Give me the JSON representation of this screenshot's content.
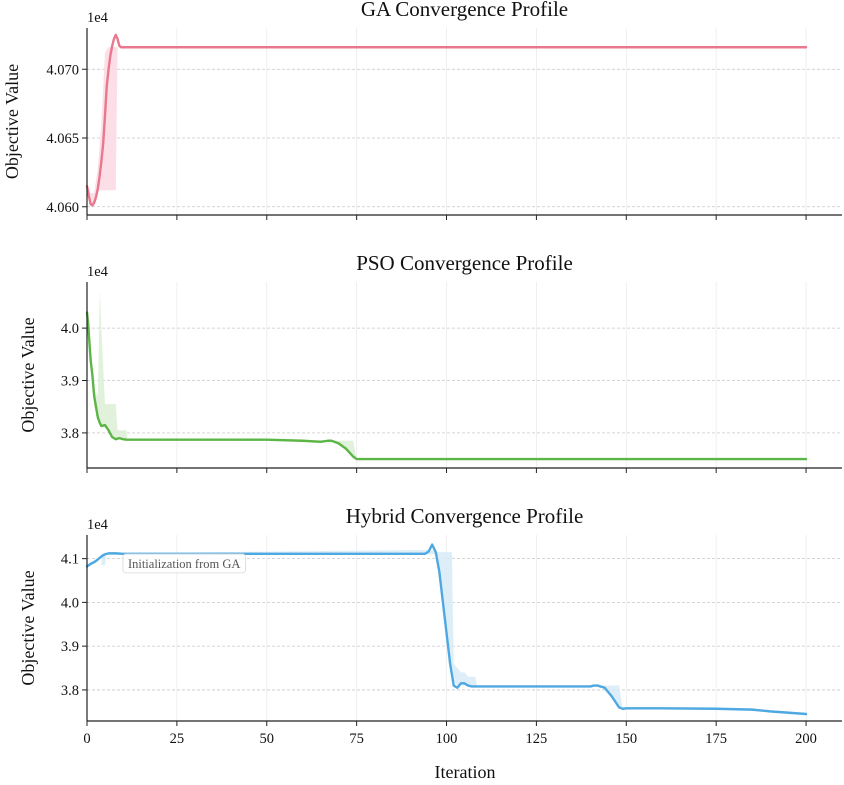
{
  "figure": {
    "xlabel": "Iteration",
    "xticks": [
      0,
      25,
      50,
      75,
      100,
      125,
      150,
      175,
      200
    ],
    "xlim": [
      0,
      210
    ]
  },
  "chart_data": [
    {
      "type": "line",
      "title": "GA Convergence Profile",
      "ylabel": "Objective Value",
      "offset_label": "1e4",
      "scale": 10000,
      "ylim": [
        40594,
        40730
      ],
      "yticks": [
        40600,
        40650,
        40700
      ],
      "ytick_labels": [
        "4.060",
        "4.065",
        "4.070"
      ],
      "color": "#e8788d",
      "band_color": "#fcd8e2",
      "series": [
        {
          "x": [
            0,
            0.5,
            1,
            1.5,
            2,
            2.5,
            3,
            3.5,
            4,
            4.5,
            5,
            5.5,
            6,
            6.5,
            7,
            7.5,
            8,
            8.5,
            9,
            9.5,
            10,
            20,
            50,
            100,
            150,
            200
          ],
          "values": [
            40615,
            40608,
            40602,
            40601,
            40603,
            40607,
            40613,
            40622,
            40633,
            40646,
            40666,
            40688,
            40700,
            40710,
            40717,
            40722,
            40725,
            40722,
            40717,
            40716,
            40716,
            40716,
            40716,
            40716,
            40716,
            40716
          ]
        }
      ],
      "band": {
        "x": [
          0,
          1,
          2,
          3,
          4,
          5,
          6,
          7,
          8,
          8.5
        ],
        "low": [
          40609,
          40602,
          40601,
          40612,
          40612,
          40612,
          40612,
          40612,
          40612,
          40716
        ],
        "high": [
          40617,
          40610,
          40610,
          40628,
          40660,
          40712,
          40716,
          40716,
          40716,
          40716
        ]
      }
    },
    {
      "type": "line",
      "title": "PSO Convergence Profile",
      "ylabel": "Objective Value",
      "offset_label": "1e4",
      "scale": 10000,
      "ylim": [
        37130,
        40680
      ],
      "yticks": [
        37800,
        38800,
        39800
      ],
      "ytick_labels": [
        "3.8",
        "3.9",
        "4.0"
      ],
      "color": "#5cb547",
      "band_color": "#dcefd6",
      "series": [
        {
          "x": [
            0,
            0.3,
            0.7,
            1,
            1.5,
            2,
            2.5,
            3,
            3.5,
            4,
            5,
            6,
            7,
            8,
            9,
            10,
            11,
            12,
            20,
            40,
            50,
            60,
            65,
            67,
            68,
            70,
            72,
            74,
            75,
            76,
            80,
            100,
            150,
            200
          ],
          "values": [
            40100,
            39900,
            39500,
            39200,
            38900,
            38500,
            38300,
            38100,
            38000,
            37930,
            37950,
            37850,
            37720,
            37680,
            37700,
            37680,
            37670,
            37670,
            37670,
            37670,
            37670,
            37650,
            37630,
            37650,
            37650,
            37600,
            37500,
            37350,
            37300,
            37300,
            37300,
            37300,
            37300,
            37300
          ]
        }
      ],
      "band": {
        "x": [
          2,
          3,
          3.6,
          4,
          5,
          8,
          8.5,
          11,
          11.2,
          68,
          70,
          74,
          75
        ],
        "low": [
          38300,
          38100,
          38000,
          37950,
          37900,
          37700,
          37700,
          37680,
          37670,
          37640,
          37600,
          37350,
          37300
        ],
        "high": [
          38600,
          38500,
          40550,
          39800,
          38350,
          38350,
          37850,
          37850,
          37670,
          37660,
          37650,
          37650,
          37300
        ]
      }
    },
    {
      "type": "line",
      "title": "Hybrid Convergence Profile",
      "ylabel": "Objective Value",
      "offset_label": "1e4",
      "scale": 10000,
      "ylim": [
        37090,
        41340
      ],
      "yticks": [
        37800,
        38800,
        39800,
        40800
      ],
      "ytick_labels": [
        "3.8",
        "3.9",
        "4.0",
        "4.1"
      ],
      "color": "#4ea8e1",
      "band_color": "#d8ebf8",
      "annotation": {
        "text": "Initialization from GA",
        "x": 10,
        "y": 40680
      },
      "series": [
        {
          "x": [
            0,
            1,
            2,
            3,
            4,
            5,
            6,
            8,
            10,
            20,
            50,
            94,
            95,
            96,
            97,
            98,
            99,
            100,
            101,
            102,
            103,
            104,
            105,
            106,
            107,
            108,
            110,
            120,
            140,
            141,
            142,
            144,
            146,
            148,
            149,
            150,
            160,
            175,
            185,
            190,
            200
          ],
          "values": [
            40620,
            40680,
            40720,
            40780,
            40850,
            40900,
            40920,
            40920,
            40910,
            40910,
            40910,
            40910,
            40960,
            41120,
            40950,
            40500,
            39800,
            39100,
            38400,
            37900,
            37850,
            37950,
            37950,
            37900,
            37880,
            37880,
            37880,
            37880,
            37880,
            37900,
            37900,
            37850,
            37650,
            37400,
            37370,
            37380,
            37380,
            37370,
            37350,
            37310,
            37250
          ]
        }
      ],
      "band": {
        "x": [
          4,
          5,
          5.5,
          96,
          97,
          98,
          99,
          100,
          101,
          101.5,
          102,
          103,
          104,
          105,
          106,
          107,
          108,
          108.5,
          142,
          143,
          145,
          147,
          148,
          149
        ],
        "low": [
          40650,
          40650,
          40920,
          40900,
          40900,
          40600,
          40000,
          39200,
          38500,
          38100,
          38000,
          37900,
          37900,
          37900,
          37900,
          37900,
          37900,
          37880,
          37880,
          37880,
          37700,
          37500,
          37400,
          37380
        ],
        "high": [
          40920,
          40920,
          40920,
          41000,
          40950,
          40950,
          40950,
          40950,
          40950,
          40950,
          38400,
          38300,
          38200,
          38200,
          38100,
          38100,
          38100,
          37900,
          37900,
          37900,
          37900,
          37900,
          37900,
          37380
        ]
      }
    }
  ]
}
